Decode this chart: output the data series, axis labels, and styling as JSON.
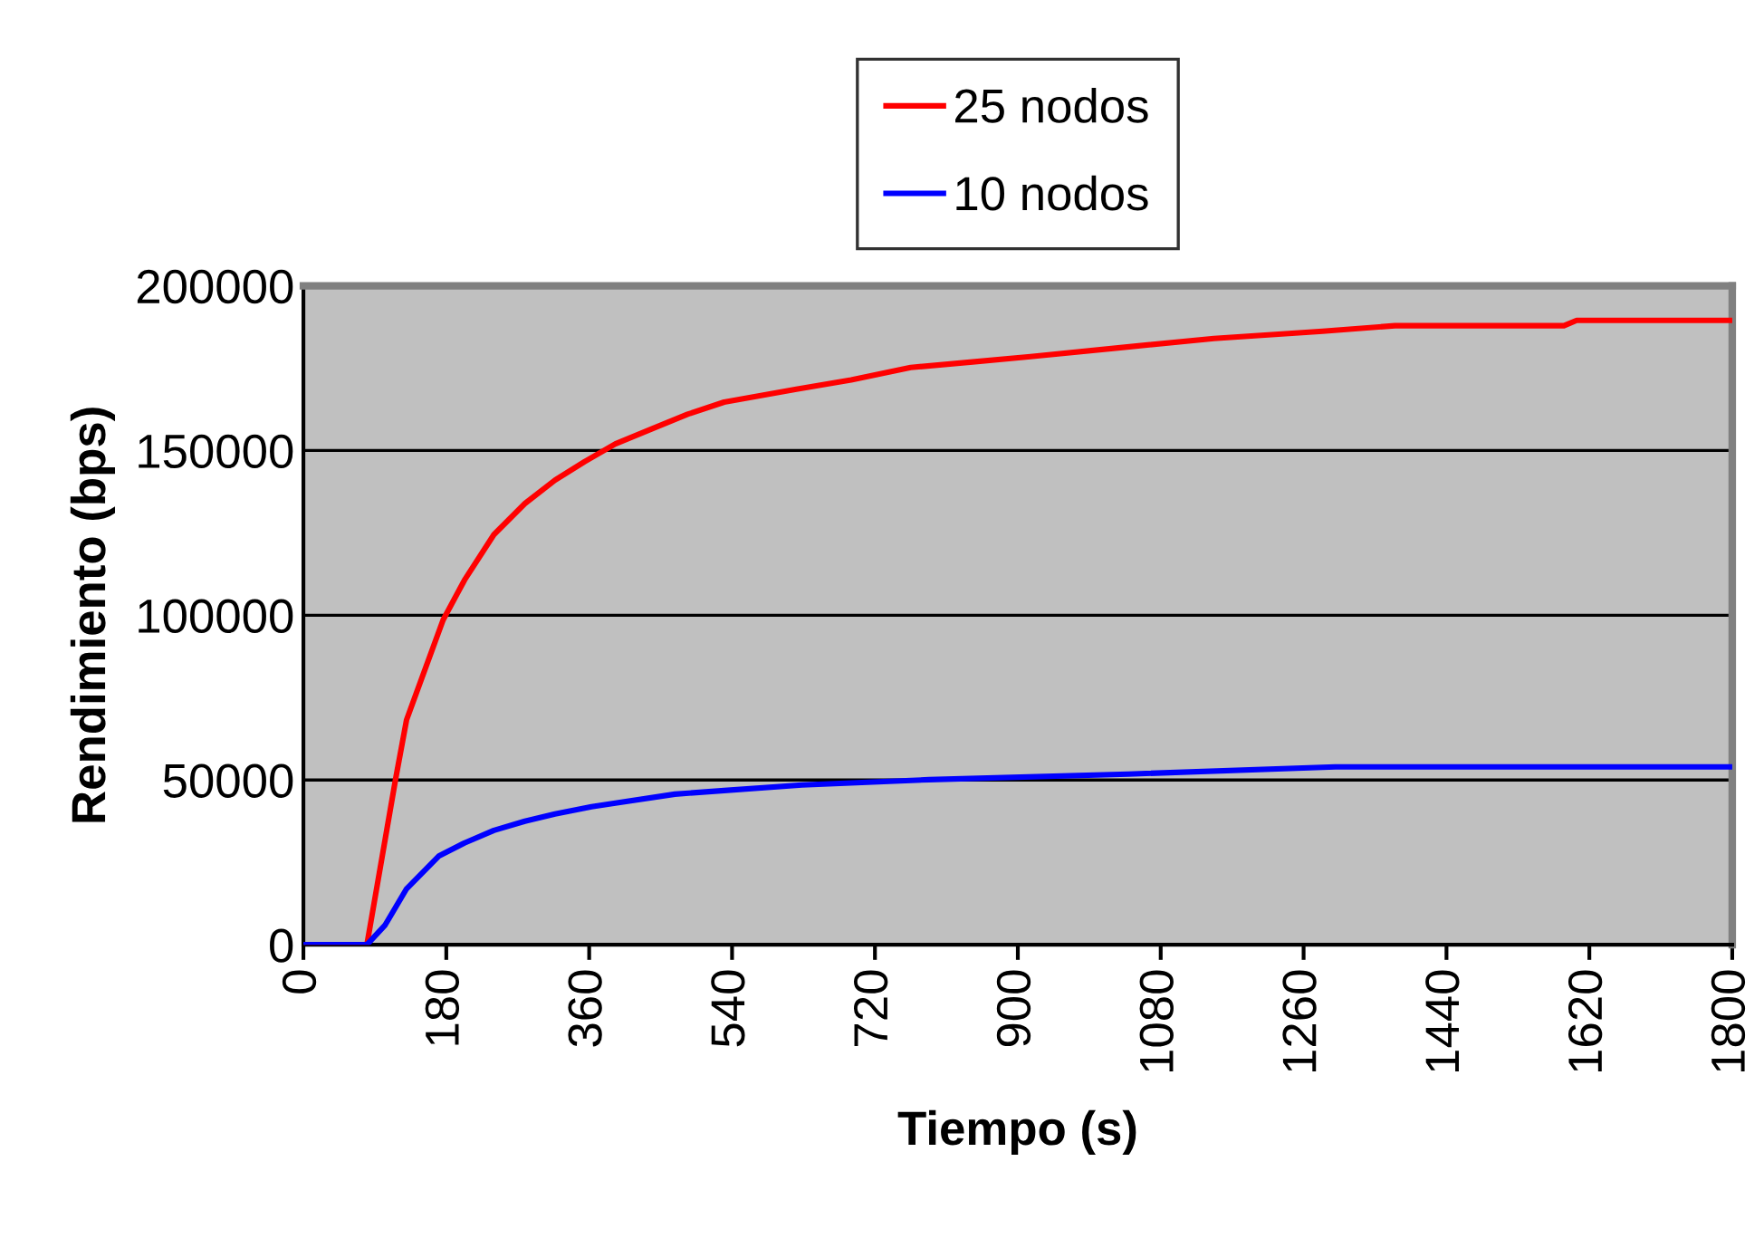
{
  "chart_data": {
    "type": "line",
    "xlabel": "Tiempo (s)",
    "ylabel": "Rendimiento (bps)",
    "xlim": [
      0,
      1800
    ],
    "xticks": [
      0,
      180,
      360,
      540,
      720,
      900,
      1080,
      1260,
      1440,
      1620,
      1800
    ],
    "ylim": [
      0,
      200000
    ],
    "yticks": [
      0,
      50000,
      100000,
      150000,
      200000
    ],
    "grid": "y",
    "legend": "top",
    "marker": "none",
    "line_style": "solid",
    "series": [
      {
        "name": "25 nodos",
        "color": "#ff0000",
        "x": [
          0,
          80,
          116,
          130,
          176,
          203,
          240,
          279,
          317,
          354,
          393,
          438,
          484,
          530,
          621,
          690,
          765,
          843,
          916,
          1032,
          1147,
          1284,
          1375,
          1588,
          1604,
          1800
        ],
        "values": [
          0,
          0,
          50100,
          68300,
          98600,
          110700,
          124500,
          133900,
          141000,
          146600,
          152000,
          156500,
          161000,
          164700,
          168600,
          171400,
          175200,
          176900,
          178500,
          181300,
          184000,
          186200,
          187900,
          187900,
          189500,
          189500
        ]
      },
      {
        "name": "10 nodos",
        "color": "#0000ff",
        "x": [
          0,
          80,
          103,
          130,
          171,
          203,
          240,
          279,
          317,
          363,
          393,
          468,
          530,
          628,
          788,
          1039,
          1300,
          1800
        ],
        "values": [
          0,
          0,
          6000,
          17000,
          27000,
          30900,
          34700,
          37500,
          39700,
          41900,
          43000,
          45700,
          46800,
          48500,
          50100,
          51800,
          54000,
          54000
        ]
      }
    ]
  }
}
